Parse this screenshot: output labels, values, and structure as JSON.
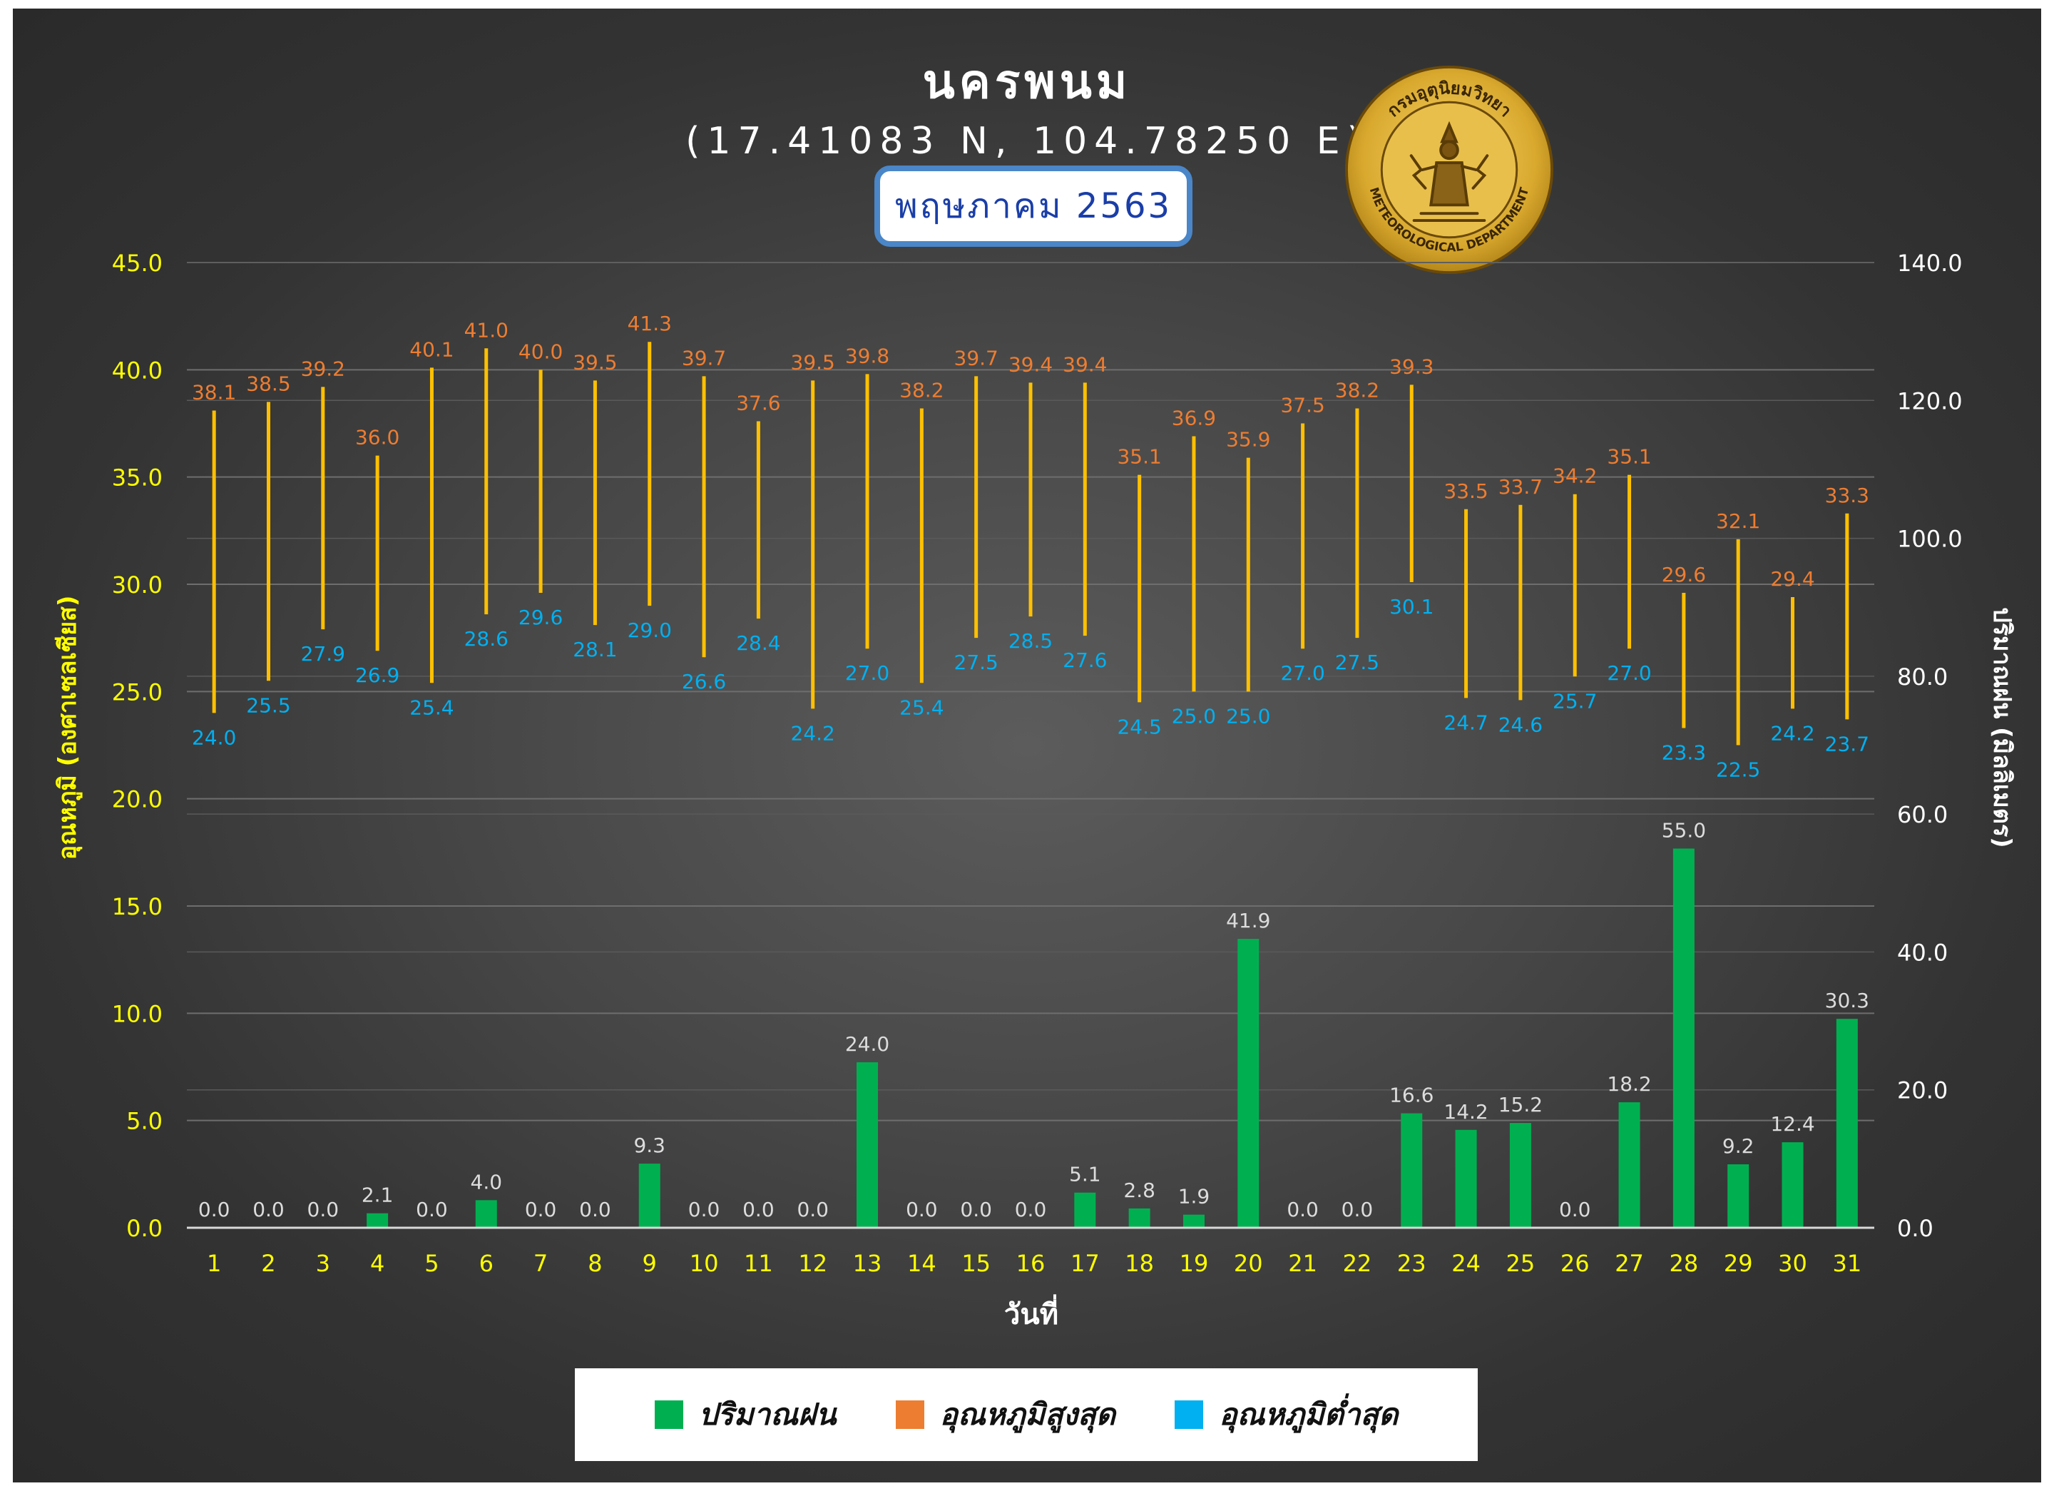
{
  "header": {
    "title": "นครพนม",
    "coordinates": "(17.41083 N, 104.78250 E)",
    "month": "พฤษภาคม 2563"
  },
  "logo": {
    "text_top": "กรมอุตุนิยมวิทยา",
    "text_bottom": "METEOROLOGICAL DEPARTMENT"
  },
  "colors": {
    "rain": "#00b050",
    "max_temp": "#ed7d31",
    "min_temp": "#00b0f0",
    "range_line": "#ffc000",
    "axis_text": "#ffff00",
    "right_axis_text": "#ffffff"
  },
  "legend": [
    {
      "label": "ปริมาณฝน",
      "color": "#00b050"
    },
    {
      "label": "อุณหภูมิสูงสุด",
      "color": "#ed7d31"
    },
    {
      "label": "อุณหภูมิต่ำสุด",
      "color": "#00b0f0"
    }
  ],
  "chart_data": {
    "type": "bar",
    "xlabel": "วันที่",
    "ylabel": "อุณหภูมิ (องศาเซลเซียส)",
    "y2label": "ปริมาณฝน (มิลลิเมตร)",
    "ylim": [
      0,
      45
    ],
    "y2lim": [
      0,
      140
    ],
    "yticks": [
      "0.0",
      "5.0",
      "10.0",
      "15.0",
      "20.0",
      "25.0",
      "30.0",
      "35.0",
      "40.0",
      "45.0"
    ],
    "y2ticks": [
      "0.0",
      "20.0",
      "40.0",
      "60.0",
      "80.0",
      "100.0",
      "120.0",
      "140.0"
    ],
    "categories": [
      "1",
      "2",
      "3",
      "4",
      "5",
      "6",
      "7",
      "8",
      "9",
      "10",
      "11",
      "12",
      "13",
      "14",
      "15",
      "16",
      "17",
      "18",
      "19",
      "20",
      "21",
      "22",
      "23",
      "24",
      "25",
      "26",
      "27",
      "28",
      "29",
      "30",
      "31"
    ],
    "series": [
      {
        "name": "ปริมาณฝน",
        "axis": "right",
        "values": [
          0.0,
          0.0,
          0.0,
          2.1,
          0.0,
          4.0,
          0.0,
          0.0,
          9.3,
          0.0,
          0.0,
          0.0,
          24.0,
          0.0,
          0.0,
          0.0,
          5.1,
          2.8,
          1.9,
          41.9,
          0.0,
          0.0,
          16.6,
          14.2,
          15.2,
          0.0,
          18.2,
          55.0,
          9.2,
          12.4,
          30.3
        ]
      },
      {
        "name": "อุณหภูมิสูงสุด",
        "axis": "left",
        "values": [
          38.1,
          38.5,
          39.2,
          36.0,
          40.1,
          41.0,
          40.0,
          39.5,
          41.3,
          39.7,
          37.6,
          39.5,
          39.8,
          38.2,
          39.7,
          39.4,
          39.4,
          35.1,
          36.9,
          35.9,
          37.5,
          38.2,
          39.3,
          33.5,
          33.7,
          34.2,
          35.1,
          29.6,
          32.1,
          29.4,
          33.3
        ]
      },
      {
        "name": "อุณหภูมิต่ำสุด",
        "axis": "left",
        "values": [
          24.0,
          25.5,
          27.9,
          26.9,
          25.4,
          28.6,
          29.6,
          28.1,
          29.0,
          26.6,
          28.4,
          24.2,
          27.0,
          25.4,
          27.5,
          28.5,
          27.6,
          24.5,
          25.0,
          25.0,
          27.0,
          27.5,
          30.1,
          24.7,
          24.6,
          25.7,
          27.0,
          23.3,
          22.5,
          24.2,
          23.7
        ]
      }
    ],
    "grid": true,
    "legend_position": "bottom"
  }
}
